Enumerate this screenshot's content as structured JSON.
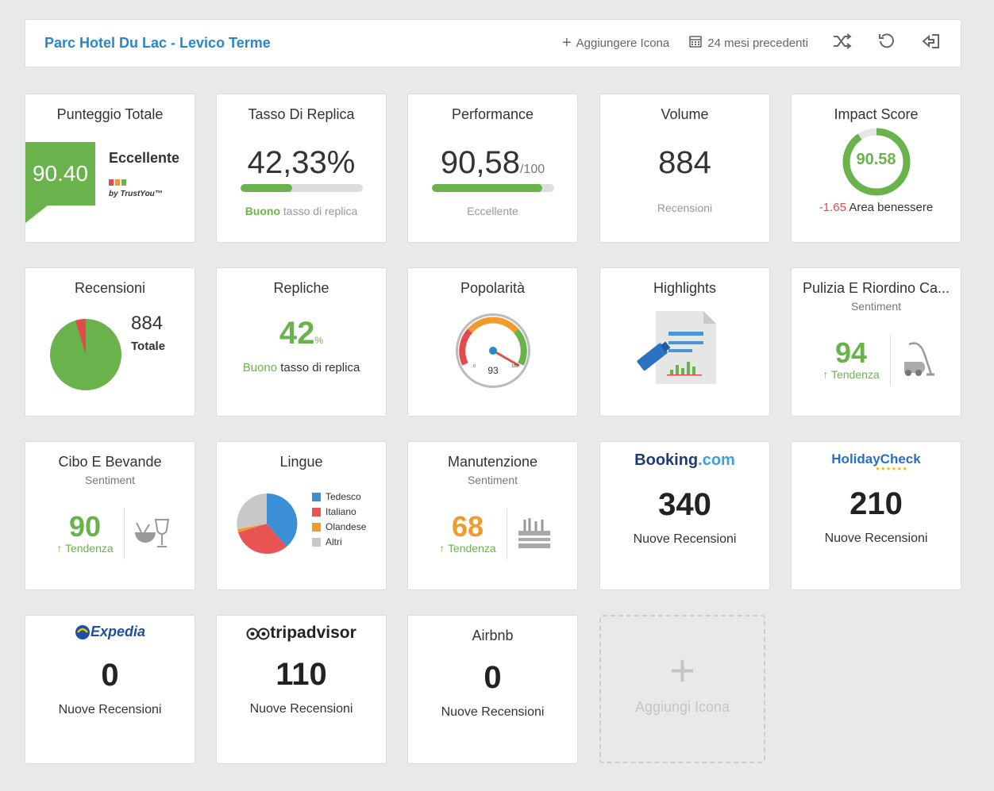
{
  "header": {
    "title": "Parc Hotel Du Lac - Levico Terme",
    "add_icon_label": "Aggiungere Icona",
    "period_label": "24 mesi precedenti"
  },
  "colors": {
    "green": "#6ab34c",
    "orange": "#f29b2c",
    "red": "#e34b4b",
    "blue": "#2a87c6"
  },
  "tiles": {
    "punteggio": {
      "title": "Punteggio Totale",
      "score": "90.40",
      "rating": "Eccellente",
      "by": "by TrustYou™"
    },
    "tasso": {
      "title": "Tasso Di Replica",
      "value": "42,33%",
      "progress": 0.4233,
      "qual": "Buono",
      "caption": "tasso di replica"
    },
    "performance": {
      "title": "Performance",
      "value": "90,58",
      "suffix": "/100",
      "progress": 0.9058,
      "caption": "Eccellente"
    },
    "volume": {
      "title": "Volume",
      "value": "884",
      "caption": "Recensioni"
    },
    "impact": {
      "title": "Impact Score",
      "value": "90.58",
      "progress": 0.9058,
      "delta": "-1.65",
      "area": "Area benessere"
    },
    "recensioni": {
      "title": "Recensioni",
      "value": "884",
      "caption": "Totale"
    },
    "repliche": {
      "title": "Repliche",
      "value": "42",
      "unit": "%",
      "qual": "Buono",
      "caption": "tasso di replica"
    },
    "popolarita": {
      "title": "Popolarità",
      "value": "93",
      "gauge_min": "0",
      "gauge_max": "100"
    },
    "highlights": {
      "title": "Highlights"
    },
    "pulizia": {
      "title": "Pulizia E Riordino Ca...",
      "subtitle": "Sentiment",
      "value": "94",
      "trend": "↑ Tendenza"
    },
    "cibo": {
      "title": "Cibo E Bevande",
      "subtitle": "Sentiment",
      "value": "90",
      "trend": "↑ Tendenza"
    },
    "lingue": {
      "title": "Lingue",
      "legend": [
        "Tedesco",
        "Italiano",
        "Olandese",
        "Altri"
      ]
    },
    "manutenzione": {
      "title": "Manutenzione",
      "subtitle": "Sentiment",
      "value": "68",
      "trend": "↑ Tendenza"
    },
    "booking": {
      "brand": "Booking",
      "brand2": ".com",
      "value": "340",
      "caption": "Nuove Recensioni"
    },
    "holidaycheck": {
      "brand": "HolidayCheck",
      "value": "210",
      "caption": "Nuove Recensioni"
    },
    "expedia": {
      "brand": "Expedia",
      "value": "0",
      "caption": "Nuove Recensioni"
    },
    "tripadvisor": {
      "brand": "tripadvisor",
      "value": "110",
      "caption": "Nuove Recensioni"
    },
    "airbnb": {
      "title": "Airbnb",
      "value": "0",
      "caption": "Nuove Recensioni"
    }
  },
  "add_tile": {
    "label": "Aggiungi Icona"
  }
}
